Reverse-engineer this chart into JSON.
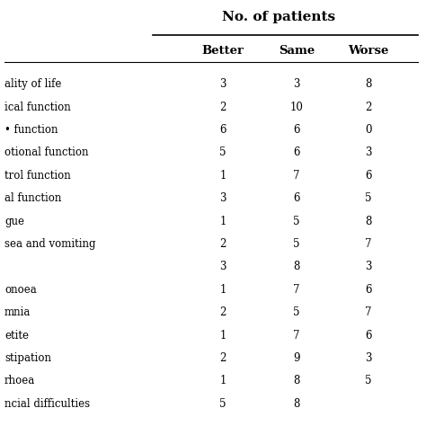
{
  "title": "No. of patients",
  "col_headers": [
    "Better",
    "Same",
    "Worse"
  ],
  "rows": [
    [
      "ality of life",
      "3",
      "3",
      "8"
    ],
    [
      "ical function",
      "2",
      "10",
      "2"
    ],
    [
      "• function",
      "6",
      "6",
      "0"
    ],
    [
      "otional function",
      "5",
      "6",
      "3"
    ],
    [
      "trol function",
      "1",
      "7",
      "6"
    ],
    [
      "al function",
      "3",
      "6",
      "5"
    ],
    [
      "gue",
      "1",
      "5",
      "8"
    ],
    [
      "sea and vomiting",
      "2",
      "5",
      "7"
    ],
    [
      "",
      "3",
      "8",
      "3"
    ],
    [
      "onoea",
      "1",
      "7",
      "6"
    ],
    [
      "mnia",
      "2",
      "5",
      "7"
    ],
    [
      "etite",
      "1",
      "7",
      "6"
    ],
    [
      "stipation",
      "2",
      "9",
      "3"
    ],
    [
      "rhoea",
      "1",
      "8",
      "5"
    ],
    [
      "ncial difficulties",
      "5",
      "8",
      ""
    ]
  ],
  "bg_color": "#f0f0f0",
  "table_bg_color": "#ffffff",
  "text_color": "#000000",
  "header_color": "#000000",
  "line_color": "#000000",
  "font_size": 8.5,
  "header_font_size": 9.5,
  "title_font_size": 11,
  "fig_width": 4.74,
  "fig_height": 4.74,
  "dpi": 100
}
